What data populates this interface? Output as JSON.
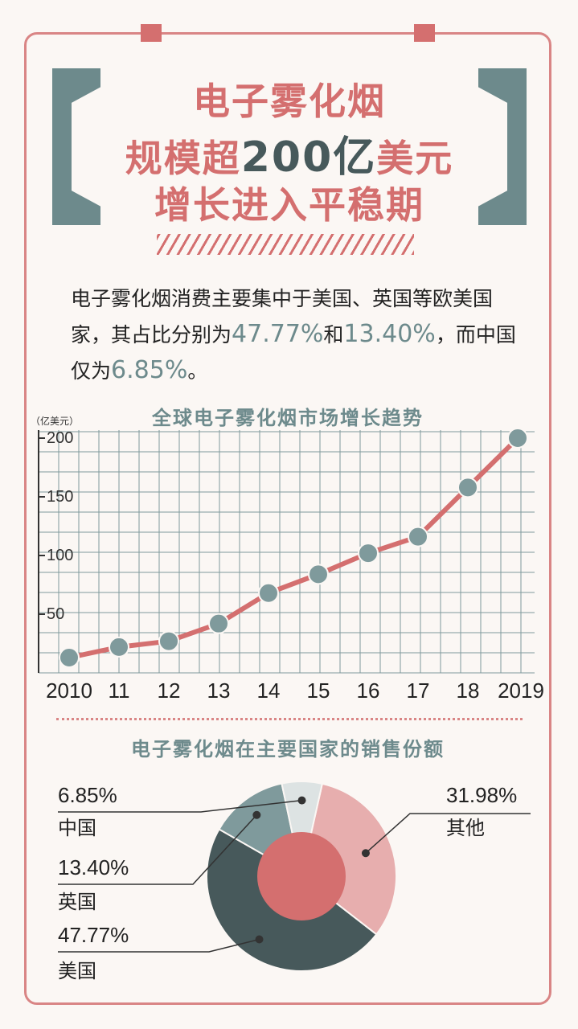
{
  "title": {
    "line1": "电子雾化烟",
    "line2_a": "规模超",
    "line2_b": "200亿",
    "line2_c": "美元",
    "line3": "增长进入平稳期"
  },
  "intro": {
    "p1": "电子雾化烟消费主要集中于美国、英国等欧美国家，其占比分别为",
    "v1": "47.77%",
    "p2": "和",
    "v2": "13.40%",
    "p3": "，而中国仅为",
    "v3": "6.85%",
    "p4": "。"
  },
  "colors": {
    "accent": "#d46f6f",
    "teal": "#6d8a8c",
    "dark_teal": "#47595b",
    "light_teal": "#7f9a9c",
    "pale": "#dde3e3",
    "pink": "#e7aeae"
  },
  "chart_data": [
    {
      "type": "line",
      "title": "全球电子雾化烟市场增长趋势",
      "unit_label": "（亿美元）",
      "x_labels": [
        "2010",
        "11",
        "12",
        "13",
        "14",
        "15",
        "16",
        "17",
        "18",
        "2019"
      ],
      "y": [
        13,
        22,
        27,
        42,
        68,
        84,
        102,
        116,
        158,
        200
      ],
      "y_ticks": [
        50,
        100,
        150,
        200
      ],
      "ylim": [
        0,
        200
      ],
      "grid": true
    },
    {
      "type": "pie",
      "title": "电子雾化烟在主要国家的销售份额",
      "slices": [
        {
          "label": "其他",
          "value": 31.98,
          "text": "31.98%"
        },
        {
          "label": "美国",
          "value": 47.77,
          "text": "47.77%"
        },
        {
          "label": "英国",
          "value": 13.4,
          "text": "13.40%"
        },
        {
          "label": "中国",
          "value": 6.85,
          "text": "6.85%"
        }
      ]
    }
  ]
}
